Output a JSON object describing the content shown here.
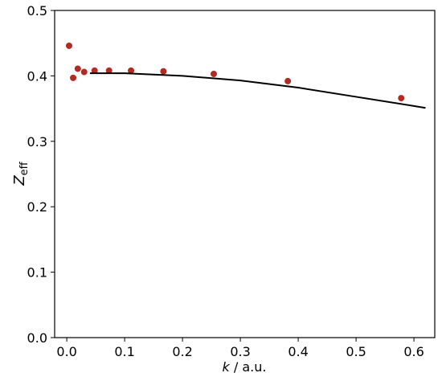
{
  "chart_data": {
    "type": "scatter",
    "xlabel": {
      "italic": "k",
      "rest": " / a.u."
    },
    "ylabel": {
      "main": "Z",
      "sub": "eff"
    },
    "xlim": [
      -0.021,
      0.636
    ],
    "ylim": [
      0,
      0.5
    ],
    "xticks": [
      {
        "value": 0,
        "label": "0.0"
      },
      0.1,
      0.2,
      0.3,
      0.4,
      0.5,
      0.6
    ],
    "yticks": [
      {
        "value": 0,
        "label": "0.0"
      },
      0.1,
      0.2,
      0.3,
      0.4,
      0.5
    ],
    "series": [
      {
        "type": "scatter",
        "color": "#b22a22",
        "x": [
          0.004,
          0.011,
          0.019,
          0.03,
          0.048,
          0.073,
          0.111,
          0.167,
          0.254,
          0.382,
          0.578
        ],
        "values": [
          0.446,
          0.397,
          0.411,
          0.406,
          0.408,
          0.408,
          0.408,
          0.407,
          0.403,
          0.392,
          0.366
        ]
      },
      {
        "type": "line",
        "color": "#000000",
        "x": [
          0.04,
          0.1,
          0.2,
          0.3,
          0.4,
          0.5,
          0.6,
          0.62
        ],
        "values": [
          0.404,
          0.404,
          0.4,
          0.393,
          0.382,
          0.368,
          0.354,
          0.351
        ]
      }
    ]
  }
}
